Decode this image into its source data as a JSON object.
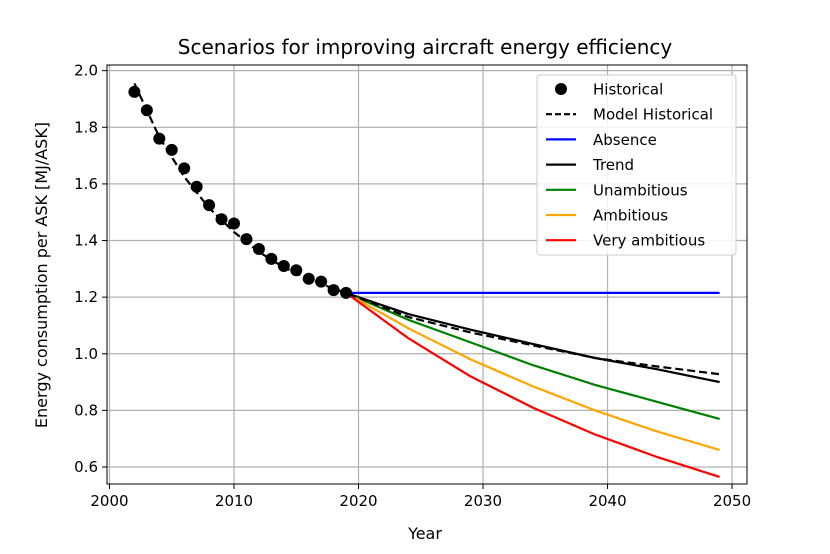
{
  "chart_data": {
    "type": "line",
    "title": "Scenarios for improving aircraft energy efficiency",
    "xlabel": "Year",
    "ylabel": "Energy consumption per ASK [MJ/ASK]",
    "xlim": [
      1999.8,
      2051.2
    ],
    "ylim": [
      0.54,
      2.02
    ],
    "xticks": [
      2000,
      2010,
      2020,
      2030,
      2040,
      2050
    ],
    "yticks": [
      0.6,
      0.8,
      1.0,
      1.2,
      1.4,
      1.6,
      1.8,
      2.0
    ],
    "xtick_labels": [
      "2000",
      "2010",
      "2020",
      "2030",
      "2040",
      "2050"
    ],
    "ytick_labels": [
      "0.6",
      "0.8",
      "1.0",
      "1.2",
      "1.4",
      "1.6",
      "1.8",
      "2.0"
    ],
    "grid": true,
    "legend_position": "top-right",
    "colors": {
      "historical": "#000000",
      "model_historical": "#000000",
      "absence": "#0000ff",
      "trend": "#000000",
      "unambitious": "#008000",
      "ambitious": "#ffa500",
      "very_ambitious": "#ff0000",
      "grid": "#b0b0b0"
    },
    "historical": {
      "name": "Historical",
      "x": [
        2002,
        2003,
        2004,
        2005,
        2006,
        2007,
        2008,
        2009,
        2010,
        2011,
        2012,
        2013,
        2014,
        2015,
        2016,
        2017,
        2018,
        2019
      ],
      "y": [
        1.925,
        1.86,
        1.76,
        1.72,
        1.655,
        1.59,
        1.525,
        1.475,
        1.46,
        1.405,
        1.37,
        1.335,
        1.31,
        1.295,
        1.265,
        1.255,
        1.225,
        1.215
      ]
    },
    "model_historical": {
      "name": "Model Historical",
      "x": [
        2002,
        2004,
        2006,
        2008,
        2010,
        2012,
        2014,
        2016,
        2018,
        2019,
        2024,
        2029,
        2034,
        2039,
        2044,
        2049
      ],
      "y": [
        1.955,
        1.765,
        1.625,
        1.515,
        1.43,
        1.36,
        1.305,
        1.265,
        1.23,
        1.215,
        1.13,
        1.075,
        1.03,
        0.985,
        0.955,
        0.928
      ]
    },
    "series": [
      {
        "name": "Absence",
        "key": "absence",
        "x": [
          2019,
          2049
        ],
        "y": [
          1.215,
          1.215
        ]
      },
      {
        "name": "Trend",
        "key": "trend",
        "x": [
          2019,
          2024,
          2029,
          2034,
          2039,
          2044,
          2049
        ],
        "y": [
          1.215,
          1.14,
          1.085,
          1.035,
          0.985,
          0.945,
          0.9
        ]
      },
      {
        "name": "Unambitious",
        "key": "unambitious",
        "x": [
          2019,
          2024,
          2029,
          2034,
          2039,
          2044,
          2049
        ],
        "y": [
          1.215,
          1.12,
          1.04,
          0.96,
          0.89,
          0.83,
          0.77
        ]
      },
      {
        "name": "Ambitious",
        "key": "ambitious",
        "x": [
          2019,
          2024,
          2029,
          2034,
          2039,
          2044,
          2049
        ],
        "y": [
          1.215,
          1.09,
          0.98,
          0.885,
          0.8,
          0.725,
          0.66
        ]
      },
      {
        "name": "Very ambitious",
        "key": "very_ambitious",
        "x": [
          2019,
          2024,
          2029,
          2034,
          2039,
          2044,
          2049
        ],
        "y": [
          1.215,
          1.055,
          0.92,
          0.81,
          0.715,
          0.635,
          0.565
        ]
      }
    ],
    "legend": [
      "Historical",
      "Model Historical",
      "Absence",
      "Trend",
      "Unambitious",
      "Ambitious",
      "Very ambitious"
    ]
  }
}
